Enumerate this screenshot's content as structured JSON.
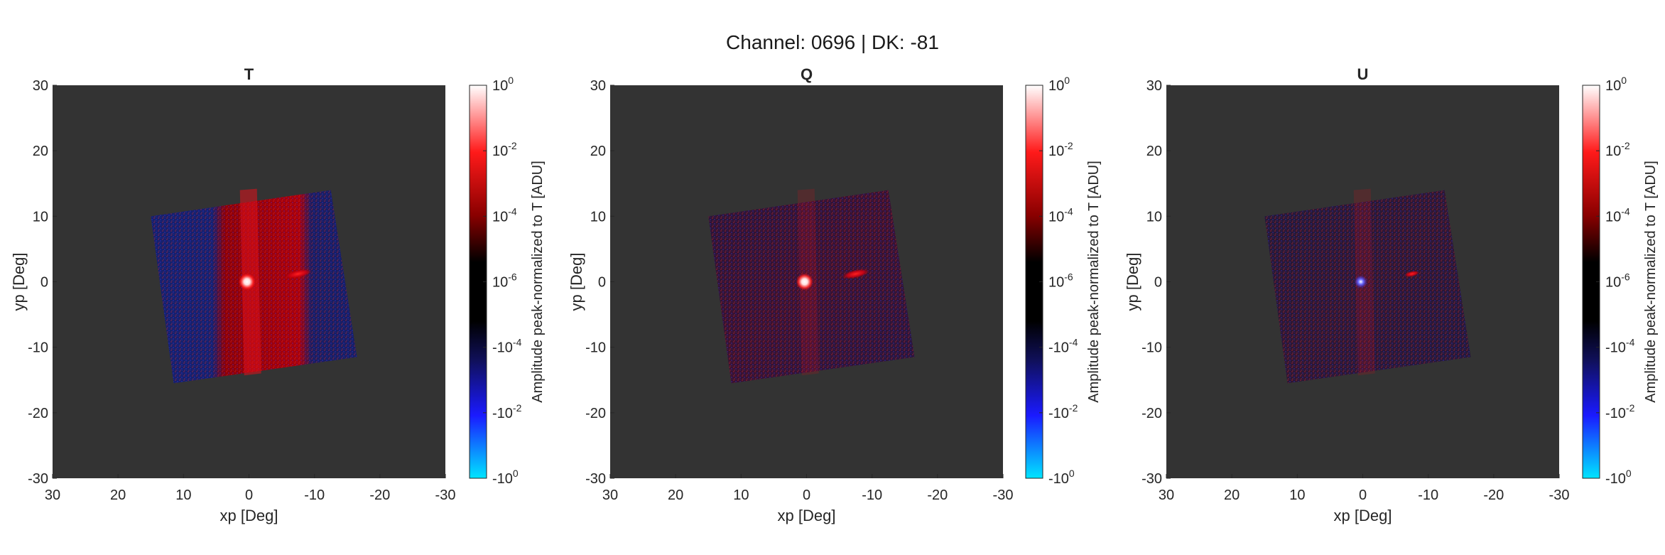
{
  "figure": {
    "title": "Channel: 0696 | DK: -81",
    "colors": {
      "background": "#ffffff",
      "axes_background": "#333333",
      "map_blue": "#14206a",
      "map_red": "#c0000a",
      "hot_spot": "#ffffff"
    }
  },
  "chart_data": [
    {
      "type": "heatmap",
      "title": "T",
      "xlabel": "xp [Deg]",
      "ylabel": "yp [Deg]",
      "xlim": [
        30,
        -30
      ],
      "ylim": [
        -30,
        30
      ],
      "x_reversed": true,
      "xticks": [
        "30",
        "20",
        "10",
        "0",
        "-10",
        "-20",
        "-30"
      ],
      "yticks": [
        "30",
        "20",
        "10",
        "0",
        "-10",
        "-20",
        "-30"
      ],
      "map_corners": [
        [
          15,
          10
        ],
        [
          -12.5,
          14
        ],
        [
          -16.5,
          -11.5
        ],
        [
          11.5,
          -15.5
        ]
      ],
      "map_tone": "red-blue",
      "bright_spot": [
        0.3,
        0
      ],
      "sidelobe": [
        -7.5,
        1.2
      ],
      "colorbar": {
        "label": "Amplitude peak-normalized to T [ADU]",
        "ticks": [
          {
            "base": "10",
            "exp": "0"
          },
          {
            "base": "10",
            "exp": "-2"
          },
          {
            "base": "10",
            "exp": "-4"
          },
          {
            "base": "10",
            "exp": "-6"
          },
          {
            "base": "-10",
            "exp": "-4"
          },
          {
            "base": "-10",
            "exp": "-2"
          },
          {
            "base": "-10",
            "exp": "0"
          }
        ]
      }
    },
    {
      "type": "heatmap",
      "title": "Q",
      "xlabel": "xp [Deg]",
      "ylabel": "yp [Deg]",
      "xlim": [
        30,
        -30
      ],
      "ylim": [
        -30,
        30
      ],
      "x_reversed": true,
      "xticks": [
        "30",
        "20",
        "10",
        "0",
        "-10",
        "-20",
        "-30"
      ],
      "yticks": [
        "30",
        "20",
        "10",
        "0",
        "-10",
        "-20",
        "-30"
      ],
      "map_corners": [
        [
          15,
          10
        ],
        [
          -12.5,
          14
        ],
        [
          -16.5,
          -11.5
        ],
        [
          11.5,
          -15.5
        ]
      ],
      "map_tone": "dim",
      "bright_spot": [
        0.3,
        0
      ],
      "sidelobe": [
        -7.5,
        1.2
      ],
      "colorbar": {
        "label": "Amplitude peak-normalized to T [ADU]",
        "ticks": [
          {
            "base": "10",
            "exp": "0"
          },
          {
            "base": "10",
            "exp": "-2"
          },
          {
            "base": "10",
            "exp": "-4"
          },
          {
            "base": "10",
            "exp": "-6"
          },
          {
            "base": "-10",
            "exp": "-4"
          },
          {
            "base": "-10",
            "exp": "-2"
          },
          {
            "base": "-10",
            "exp": "0"
          }
        ]
      }
    },
    {
      "type": "heatmap",
      "title": "U",
      "xlabel": "xp [Deg]",
      "ylabel": "yp [Deg]",
      "xlim": [
        30,
        -30
      ],
      "ylim": [
        -30,
        30
      ],
      "x_reversed": true,
      "xticks": [
        "30",
        "20",
        "10",
        "0",
        "-10",
        "-20",
        "-30"
      ],
      "yticks": [
        "30",
        "20",
        "10",
        "0",
        "-10",
        "-20",
        "-30"
      ],
      "map_corners": [
        [
          15,
          10
        ],
        [
          -12.5,
          14
        ],
        [
          -16.5,
          -11.5
        ],
        [
          11.5,
          -15.5
        ]
      ],
      "map_tone": "faint",
      "bright_spot": [
        0.3,
        0
      ],
      "sidelobe": [
        -7.5,
        1.2
      ],
      "colorbar": {
        "label": "Amplitude peak-normalized to T [ADU]",
        "ticks": [
          {
            "base": "10",
            "exp": "0"
          },
          {
            "base": "10",
            "exp": "-2"
          },
          {
            "base": "10",
            "exp": "-4"
          },
          {
            "base": "10",
            "exp": "-6"
          },
          {
            "base": "-10",
            "exp": "-4"
          },
          {
            "base": "-10",
            "exp": "-2"
          },
          {
            "base": "-10",
            "exp": "0"
          }
        ]
      }
    }
  ]
}
